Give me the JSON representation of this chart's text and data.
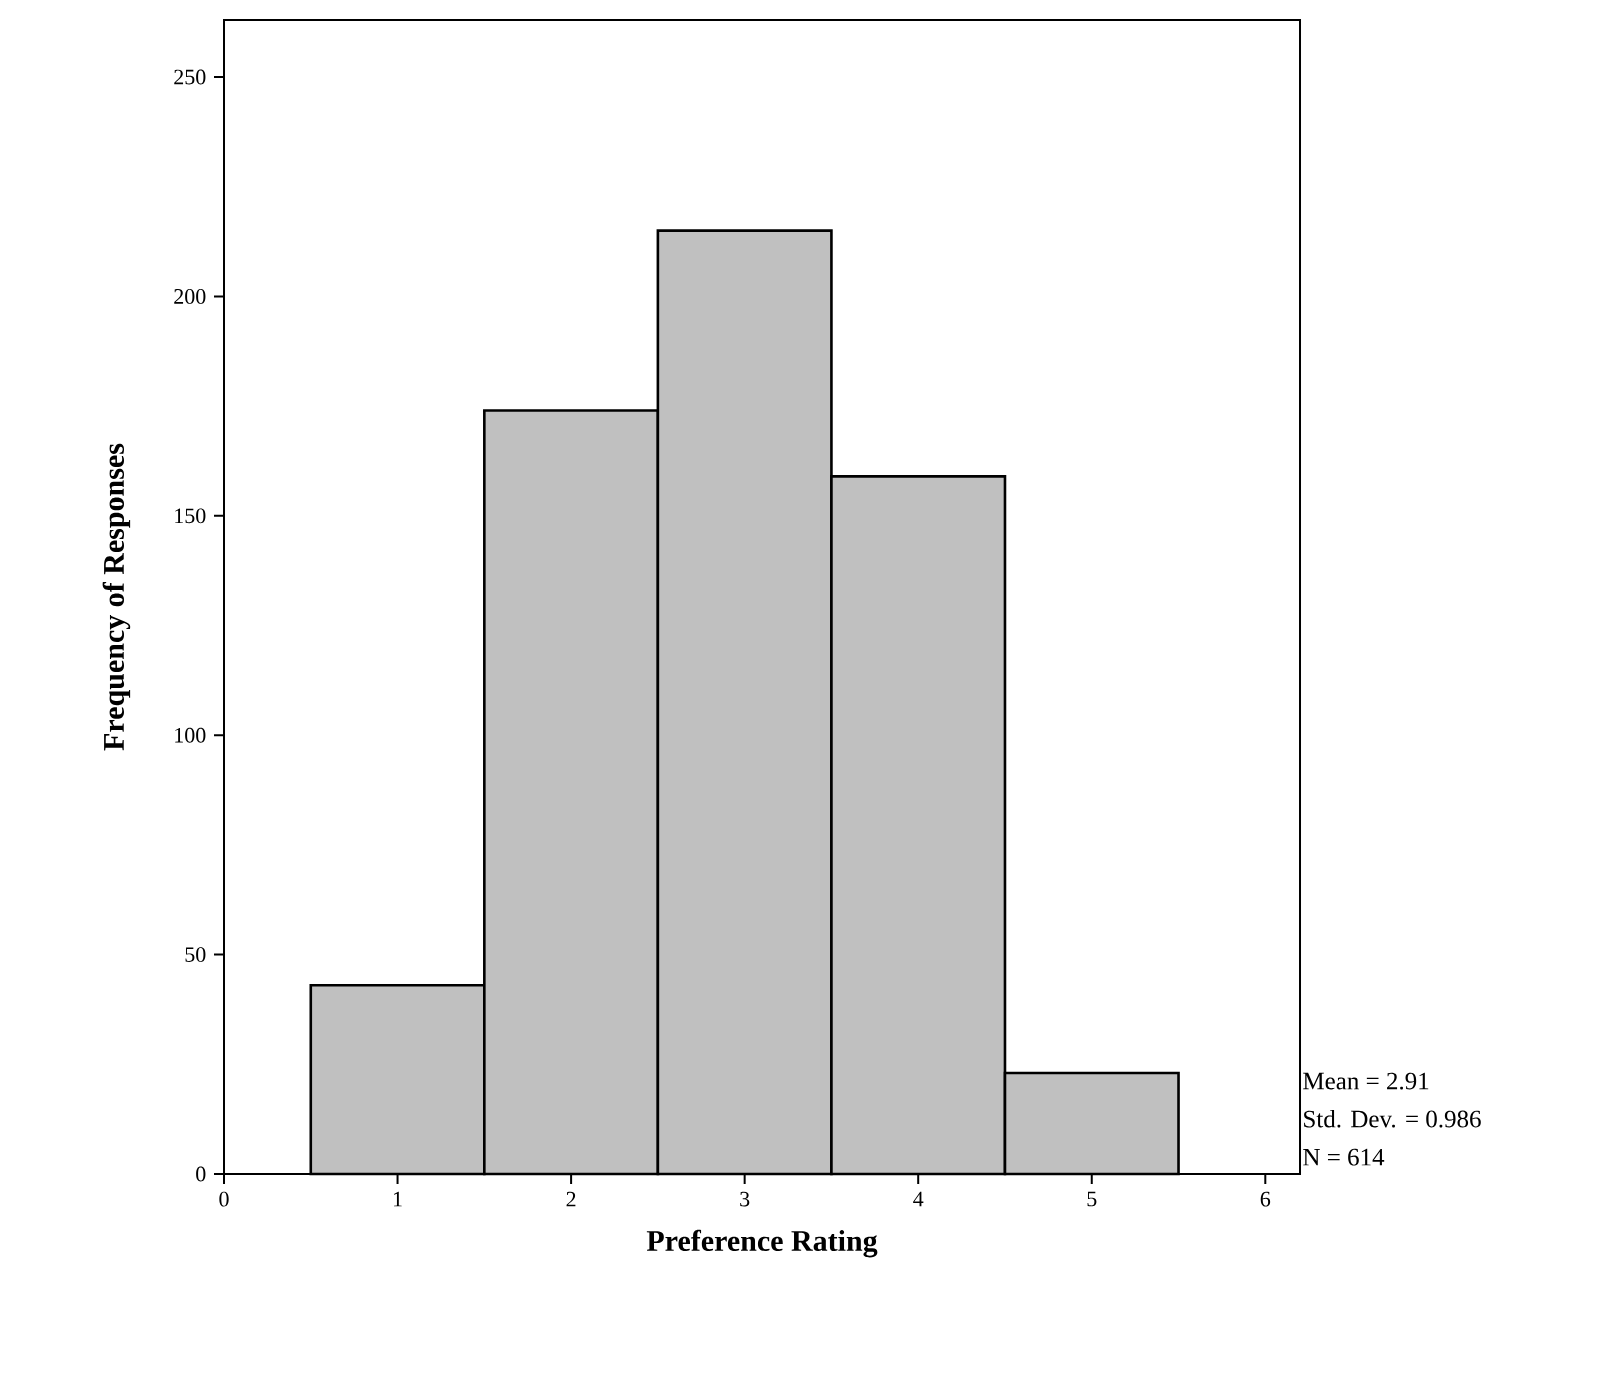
{
  "chart_data": {
    "type": "histogram",
    "xlabel": "Preference Rating",
    "ylabel": "Frequency of Responses",
    "bins": [
      0.5,
      1.5,
      2.5,
      3.5,
      4.5,
      5.5
    ],
    "values": [
      43,
      174,
      215,
      159,
      23
    ],
    "color": "#c0c0c0",
    "xlim": [
      0,
      6.2
    ],
    "ylim": [
      0,
      263
    ],
    "xticks": [
      0,
      1,
      2,
      3,
      4,
      5,
      6
    ],
    "yticks": [
      0,
      50,
      100,
      150,
      200,
      250
    ],
    "grid": false,
    "annotations": [
      "Mean = 2.91",
      "Std. Dev. = 0.986",
      "N = 614"
    ]
  }
}
